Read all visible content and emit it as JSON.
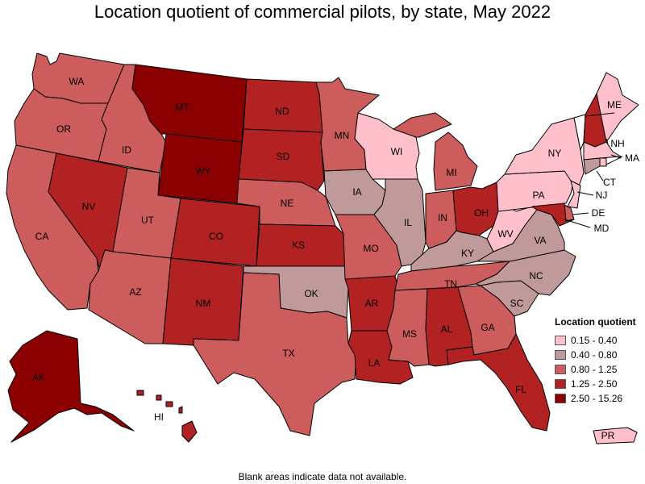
{
  "title": "Location quotient of commercial pilots, by state, May 2022",
  "footnote": "Blank areas indicate data not available.",
  "legend": {
    "title": "Location quotient",
    "items": [
      {
        "label": "0.15 - 0.40",
        "color": "#ffc0cb"
      },
      {
        "label": "0.40 - 0.80",
        "color": "#c09a9a"
      },
      {
        "label": "0.80 - 1.25",
        "color": "#cd5c5c"
      },
      {
        "label": "1.25 - 2.50",
        "color": "#b22222"
      },
      {
        "label": "2.50 - 15.26",
        "color": "#8b0000"
      }
    ]
  },
  "states": [
    {
      "abbr": "WA",
      "cls": 2
    },
    {
      "abbr": "OR",
      "cls": 2
    },
    {
      "abbr": "CA",
      "cls": 2
    },
    {
      "abbr": "ID",
      "cls": 2
    },
    {
      "abbr": "NV",
      "cls": 3
    },
    {
      "abbr": "MT",
      "cls": 4
    },
    {
      "abbr": "WY",
      "cls": 4
    },
    {
      "abbr": "UT",
      "cls": 2
    },
    {
      "abbr": "AZ",
      "cls": 2
    },
    {
      "abbr": "CO",
      "cls": 3
    },
    {
      "abbr": "NM",
      "cls": 3
    },
    {
      "abbr": "ND",
      "cls": 3
    },
    {
      "abbr": "SD",
      "cls": 3
    },
    {
      "abbr": "NE",
      "cls": 2
    },
    {
      "abbr": "KS",
      "cls": 3
    },
    {
      "abbr": "OK",
      "cls": 1
    },
    {
      "abbr": "TX",
      "cls": 2
    },
    {
      "abbr": "MN",
      "cls": 2
    },
    {
      "abbr": "IA",
      "cls": 1
    },
    {
      "abbr": "MO",
      "cls": 2
    },
    {
      "abbr": "AR",
      "cls": 3
    },
    {
      "abbr": "LA",
      "cls": 3
    },
    {
      "abbr": "WI",
      "cls": 0
    },
    {
      "abbr": "IL",
      "cls": 1
    },
    {
      "abbr": "MI",
      "cls": 2
    },
    {
      "abbr": "IN",
      "cls": 2
    },
    {
      "abbr": "OH",
      "cls": 3
    },
    {
      "abbr": "KY",
      "cls": 1
    },
    {
      "abbr": "TN",
      "cls": 2
    },
    {
      "abbr": "MS",
      "cls": 2
    },
    {
      "abbr": "AL",
      "cls": 3
    },
    {
      "abbr": "GA",
      "cls": 2
    },
    {
      "abbr": "FL",
      "cls": 3
    },
    {
      "abbr": "SC",
      "cls": 1
    },
    {
      "abbr": "NC",
      "cls": 1
    },
    {
      "abbr": "VA",
      "cls": 1
    },
    {
      "abbr": "WV",
      "cls": 0
    },
    {
      "abbr": "PA",
      "cls": 0
    },
    {
      "abbr": "NY",
      "cls": 0
    },
    {
      "abbr": "VT",
      "cls": null
    },
    {
      "abbr": "NH",
      "cls": 3
    },
    {
      "abbr": "ME",
      "cls": 0
    },
    {
      "abbr": "MA",
      "cls": 0
    },
    {
      "abbr": "RI",
      "cls": 0
    },
    {
      "abbr": "CT",
      "cls": 1
    },
    {
      "abbr": "NJ",
      "cls": 0
    },
    {
      "abbr": "DE",
      "cls": 2
    },
    {
      "abbr": "MD",
      "cls": 3
    },
    {
      "abbr": "AK",
      "cls": 4
    },
    {
      "abbr": "HI",
      "cls": 3
    },
    {
      "abbr": "PR",
      "cls": 0
    }
  ],
  "labels": [
    "WA",
    "OR",
    "CA",
    "ID",
    "NV",
    "MT",
    "WY",
    "UT",
    "AZ",
    "CO",
    "NM",
    "ND",
    "SD",
    "NE",
    "KS",
    "OK",
    "TX",
    "MN",
    "IA",
    "MO",
    "AR",
    "LA",
    "WI",
    "IL",
    "MI",
    "IN",
    "OH",
    "KY",
    "TN",
    "MS",
    "AL",
    "GA",
    "FL",
    "SC",
    "NC",
    "VA",
    "WV",
    "PA",
    "NY",
    "ME",
    "NH",
    "MA",
    "CT",
    "NJ",
    "DE",
    "MD",
    "AK",
    "HI",
    "PR"
  ]
}
